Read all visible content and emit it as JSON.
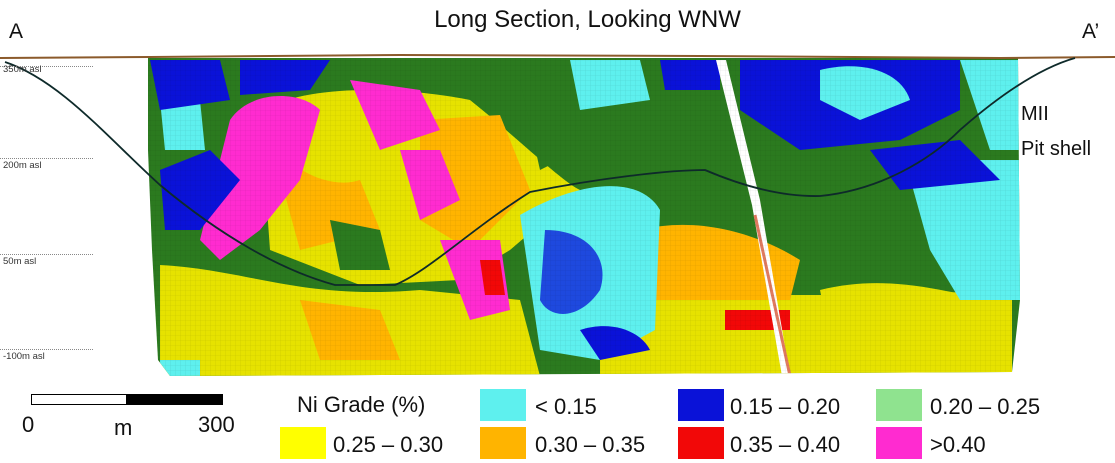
{
  "title": "Long Section, Looking WNW",
  "section_labels": {
    "start": "A",
    "end": "A’"
  },
  "elevations": [
    "350m asl",
    "200m asl",
    "50m asl",
    "-100m asl"
  ],
  "pit_shell_label": {
    "line1": "MII",
    "line2": "Pit shell"
  },
  "scale_bar": {
    "left_value": "0",
    "unit": "m",
    "right_value": "300"
  },
  "legend": {
    "title": "Ni Grade (%)",
    "items": [
      {
        "label": "< 0.15",
        "color": "#5ef0ee"
      },
      {
        "label": "0.15 – 0.20",
        "color": "#0a12d8"
      },
      {
        "label": "0.20 – 0.25",
        "color": "#8fe38f"
      },
      {
        "label": "0.25 – 0.30",
        "color": "#ffff00"
      },
      {
        "label": "0.30 – 0.35",
        "color": "#ffb400"
      },
      {
        "label": "0.35 – 0.40",
        "color": "#f20808"
      },
      {
        "label": ">0.40",
        "color": "#ff2bd0"
      }
    ]
  },
  "colors": {
    "background_rock": "#2b7a1f",
    "topography": "#8b5a2b",
    "pit_shell": "#0e2a2a"
  }
}
